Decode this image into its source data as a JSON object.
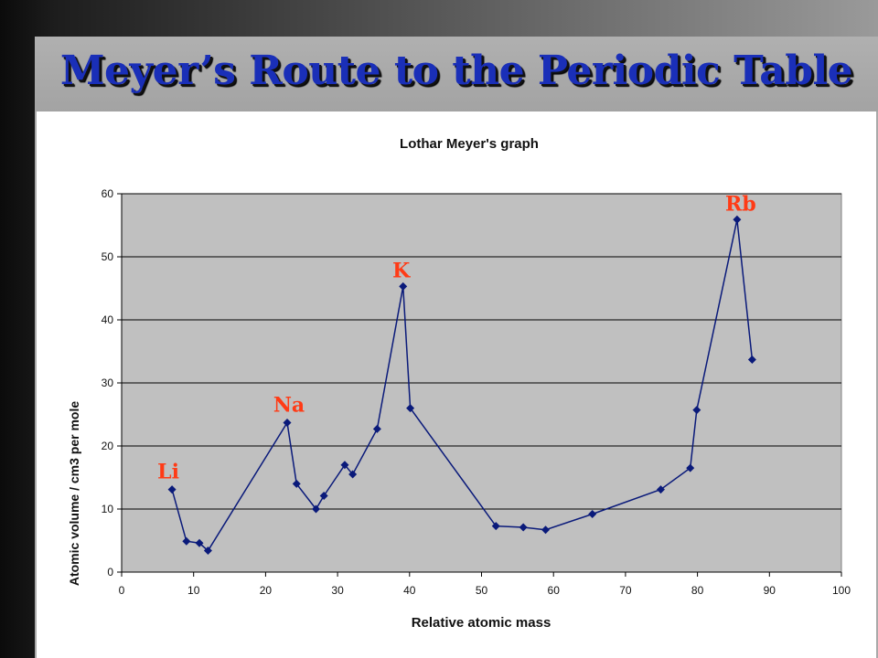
{
  "slide": {
    "title": "Meyer’s Route to the Periodic Table"
  },
  "colors": {
    "title": "#1a2fb8",
    "series": "#0a1a7a",
    "plot_background": "#c0c0c0",
    "element_labels": "#ff3b16"
  },
  "chart_data": {
    "type": "line",
    "title": "Lothar Meyer's graph",
    "xlabel": "Relative atomic mass",
    "ylabel": "Atomic volume / cm3 per mole",
    "xlim": [
      0,
      100
    ],
    "ylim": [
      0,
      60
    ],
    "xticks": [
      0,
      10,
      20,
      30,
      40,
      50,
      60,
      70,
      80,
      90,
      100
    ],
    "yticks": [
      0,
      10,
      20,
      30,
      40,
      50,
      60
    ],
    "grid": "horizontal",
    "legend": "none",
    "series": [
      {
        "points": [
          [
            7,
            13.1
          ],
          [
            9,
            4.9
          ],
          [
            10.8,
            4.6
          ],
          [
            12,
            3.4
          ],
          [
            23,
            23.7
          ],
          [
            24.3,
            14.0
          ],
          [
            27,
            10.0
          ],
          [
            28.1,
            12.1
          ],
          [
            31,
            17.0
          ],
          [
            32.1,
            15.5
          ],
          [
            35.5,
            22.7
          ],
          [
            39.1,
            45.3
          ],
          [
            40.1,
            26.0
          ],
          [
            52,
            7.3
          ],
          [
            55.8,
            7.1
          ],
          [
            58.9,
            6.7
          ],
          [
            65.4,
            9.2
          ],
          [
            74.9,
            13.1
          ],
          [
            79,
            16.5
          ],
          [
            79.9,
            25.7
          ],
          [
            85.5,
            55.9
          ],
          [
            87.6,
            33.7
          ]
        ]
      }
    ],
    "annotations": [
      {
        "text": "Li",
        "x": 7,
        "y": 13.1
      },
      {
        "text": "Na",
        "x": 23,
        "y": 23.7
      },
      {
        "text": "K",
        "x": 39.1,
        "y": 45.3
      },
      {
        "text": "Rb",
        "x": 85.5,
        "y": 55.9
      }
    ]
  }
}
